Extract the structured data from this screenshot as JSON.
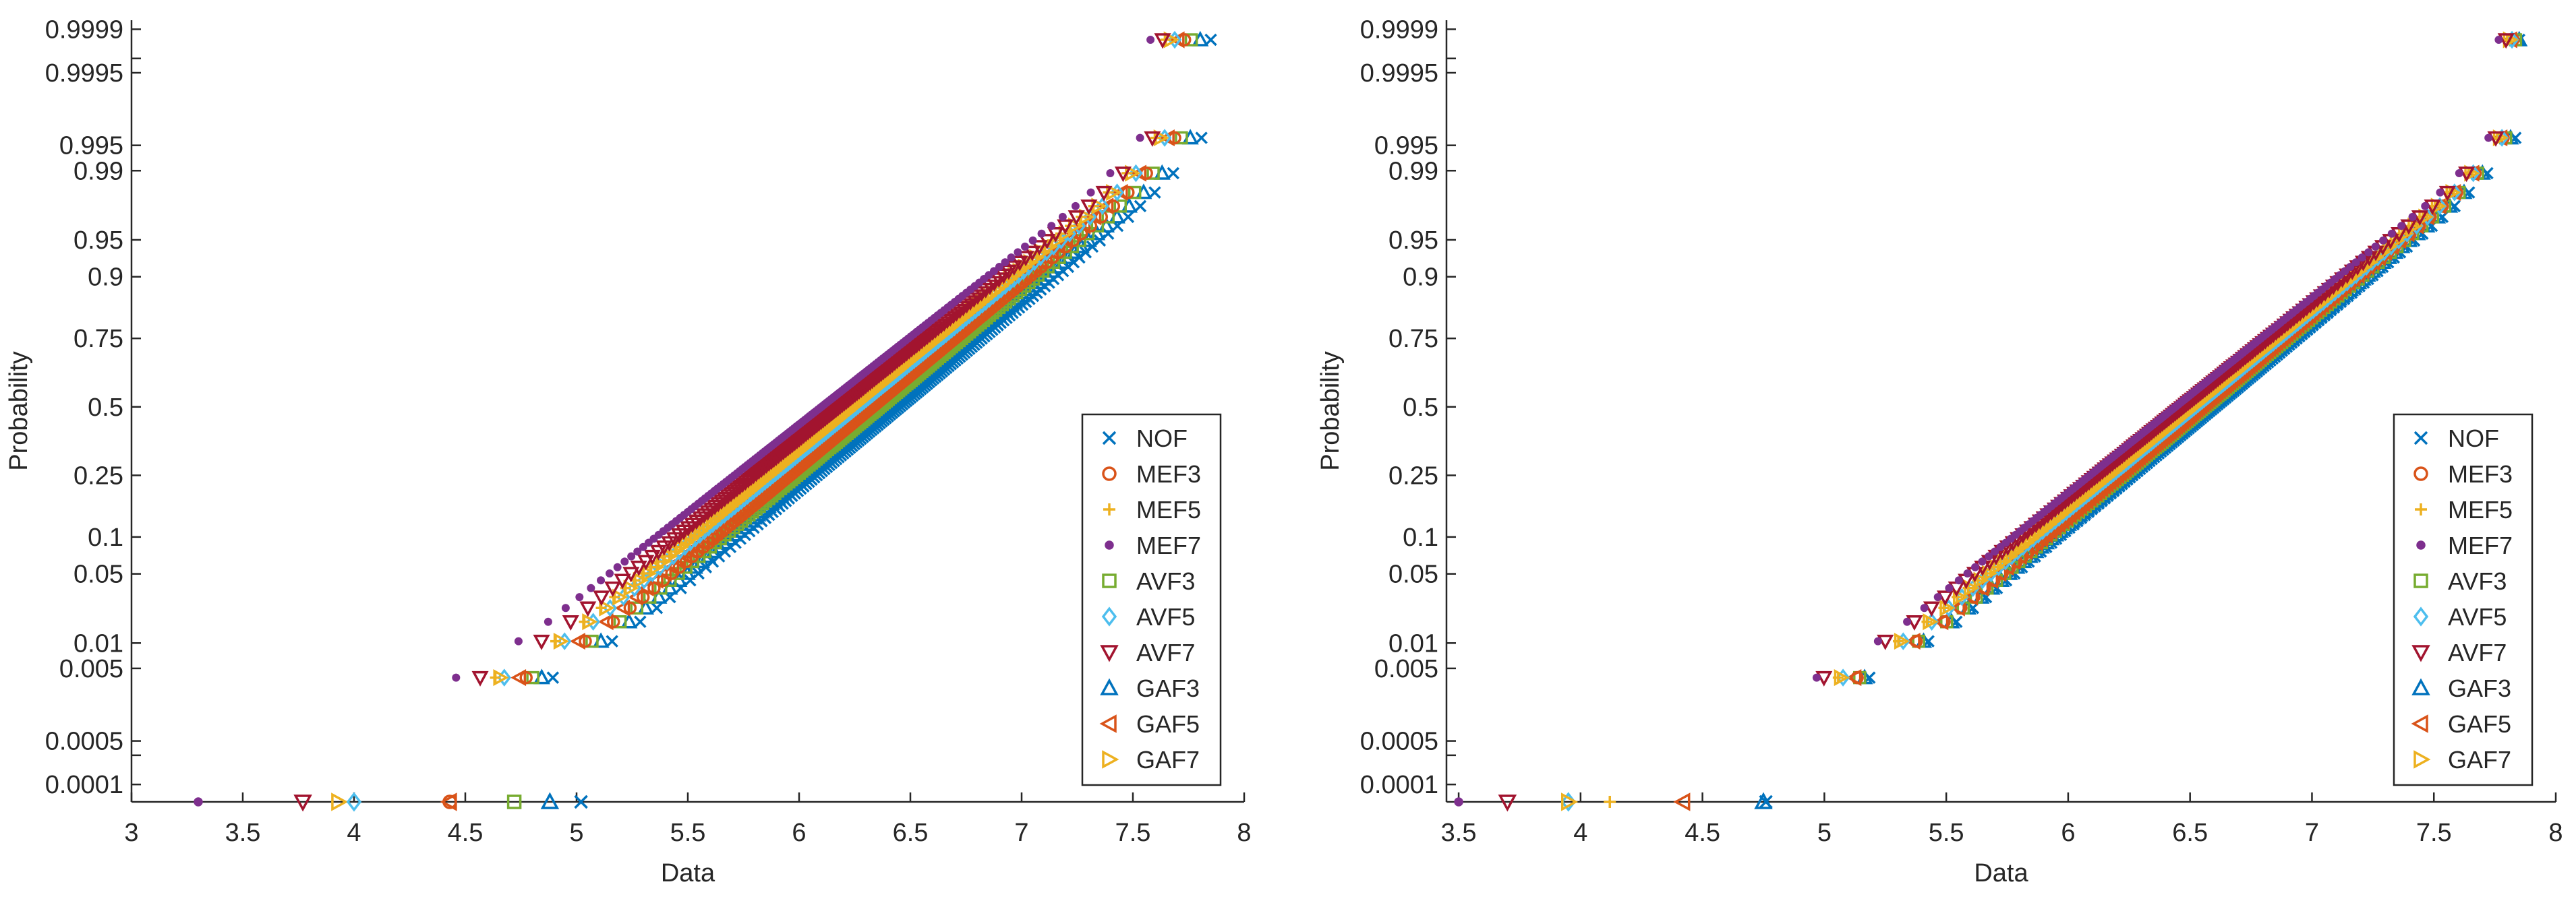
{
  "chart_data": [
    {
      "type": "scatter",
      "subtype": "normal-probability-plot",
      "xlabel": "Data",
      "ylabel": "Probability",
      "xlim": [
        3,
        8
      ],
      "xticks": [
        "3",
        "3.5",
        "4",
        "4.5",
        "5",
        "5.5",
        "6",
        "6.5",
        "7",
        "7.5",
        "8"
      ],
      "yticks": [
        "0.0001",
        "0.0005",
        "0.005",
        "0.01",
        "0.05",
        "0.1",
        "0.25",
        "0.5",
        "0.75",
        "0.9",
        "0.95",
        "0.99",
        "0.995",
        "0.9995",
        "0.9999"
      ],
      "legend_position": "lower-right",
      "series": [
        {
          "name": "NOF",
          "color": "#0072BD",
          "marker": "x",
          "mean": 6.45,
          "sd": 0.55
        },
        {
          "name": "MEF3",
          "color": "#D95319",
          "marker": "circle",
          "mean": 6.33,
          "sd": 0.55
        },
        {
          "name": "MEF5",
          "color": "#EDB120",
          "marker": "plus",
          "mean": 6.22,
          "sd": 0.56
        },
        {
          "name": "MEF7",
          "color": "#7E2F8E",
          "marker": "dot",
          "mean": 6.1,
          "sd": 0.58
        },
        {
          "name": "AVF3",
          "color": "#77AC30",
          "marker": "square",
          "mean": 6.36,
          "sd": 0.55
        },
        {
          "name": "AVF5",
          "color": "#4DBEEE",
          "marker": "diamond",
          "mean": 6.26,
          "sd": 0.56
        },
        {
          "name": "AVF7",
          "color": "#A2142F",
          "marker": "tri-down",
          "mean": 6.18,
          "sd": 0.57
        },
        {
          "name": "GAF3",
          "color": "#0072BD",
          "marker": "tri-up",
          "mean": 6.4,
          "sd": 0.55
        },
        {
          "name": "GAF5",
          "color": "#D95319",
          "marker": "tri-left",
          "mean": 6.3,
          "sd": 0.55
        },
        {
          "name": "GAF7",
          "color": "#EDB120",
          "marker": "tri-right",
          "mean": 6.24,
          "sd": 0.56
        }
      ],
      "min_points": [
        {
          "name": "MEF7",
          "x": 3.3
        },
        {
          "name": "AVF7",
          "x": 3.77
        },
        {
          "name": "GAF7",
          "x": 3.93
        },
        {
          "name": "AVF5",
          "x": 4.0
        },
        {
          "name": "MEF3",
          "x": 4.43
        },
        {
          "name": "GAF5",
          "x": 4.43
        },
        {
          "name": "AVF3",
          "x": 4.72
        },
        {
          "name": "GAF3",
          "x": 4.88
        },
        {
          "name": "NOF",
          "x": 5.02
        }
      ]
    },
    {
      "type": "scatter",
      "subtype": "normal-probability-plot",
      "xlabel": "Data",
      "ylabel": "Probability",
      "xlim": [
        3.45,
        8
      ],
      "xticks": [
        "3.5",
        "4",
        "4.5",
        "5",
        "5.5",
        "6",
        "6.5",
        "7",
        "7.5",
        "8"
      ],
      "yticks": [
        "0.0001",
        "0.0005",
        "0.005",
        "0.01",
        "0.05",
        "0.1",
        "0.25",
        "0.5",
        "0.75",
        "0.9",
        "0.95",
        "0.99",
        "0.995",
        "0.9995",
        "0.9999"
      ],
      "legend_position": "lower-right",
      "series": [
        {
          "name": "NOF",
          "color": "#0072BD",
          "marker": "x",
          "mean": 6.6,
          "sd": 0.5
        },
        {
          "name": "MEF3",
          "color": "#D95319",
          "marker": "circle",
          "mean": 6.55,
          "sd": 0.5
        },
        {
          "name": "MEF5",
          "color": "#EDB120",
          "marker": "plus",
          "mean": 6.5,
          "sd": 0.51
        },
        {
          "name": "MEF7",
          "color": "#7E2F8E",
          "marker": "dot",
          "mean": 6.44,
          "sd": 0.52
        },
        {
          "name": "AVF3",
          "color": "#77AC30",
          "marker": "square",
          "mean": 6.56,
          "sd": 0.5
        },
        {
          "name": "AVF5",
          "color": "#4DBEEE",
          "marker": "diamond",
          "mean": 6.52,
          "sd": 0.51
        },
        {
          "name": "AVF7",
          "color": "#A2142F",
          "marker": "tri-down",
          "mean": 6.47,
          "sd": 0.52
        },
        {
          "name": "GAF3",
          "color": "#0072BD",
          "marker": "tri-up",
          "mean": 6.58,
          "sd": 0.5
        },
        {
          "name": "GAF5",
          "color": "#D95319",
          "marker": "tri-left",
          "mean": 6.54,
          "sd": 0.5
        },
        {
          "name": "GAF7",
          "color": "#EDB120",
          "marker": "tri-right",
          "mean": 6.51,
          "sd": 0.51
        }
      ],
      "min_points": [
        {
          "name": "MEF7",
          "x": 3.5
        },
        {
          "name": "AVF7",
          "x": 3.7
        },
        {
          "name": "AVF5",
          "x": 3.95
        },
        {
          "name": "GAF7",
          "x": 3.95
        },
        {
          "name": "MEF5",
          "x": 4.12
        },
        {
          "name": "GAF5",
          "x": 4.42
        },
        {
          "name": "GAF3",
          "x": 4.75
        },
        {
          "name": "NOF",
          "x": 4.76
        }
      ]
    }
  ]
}
